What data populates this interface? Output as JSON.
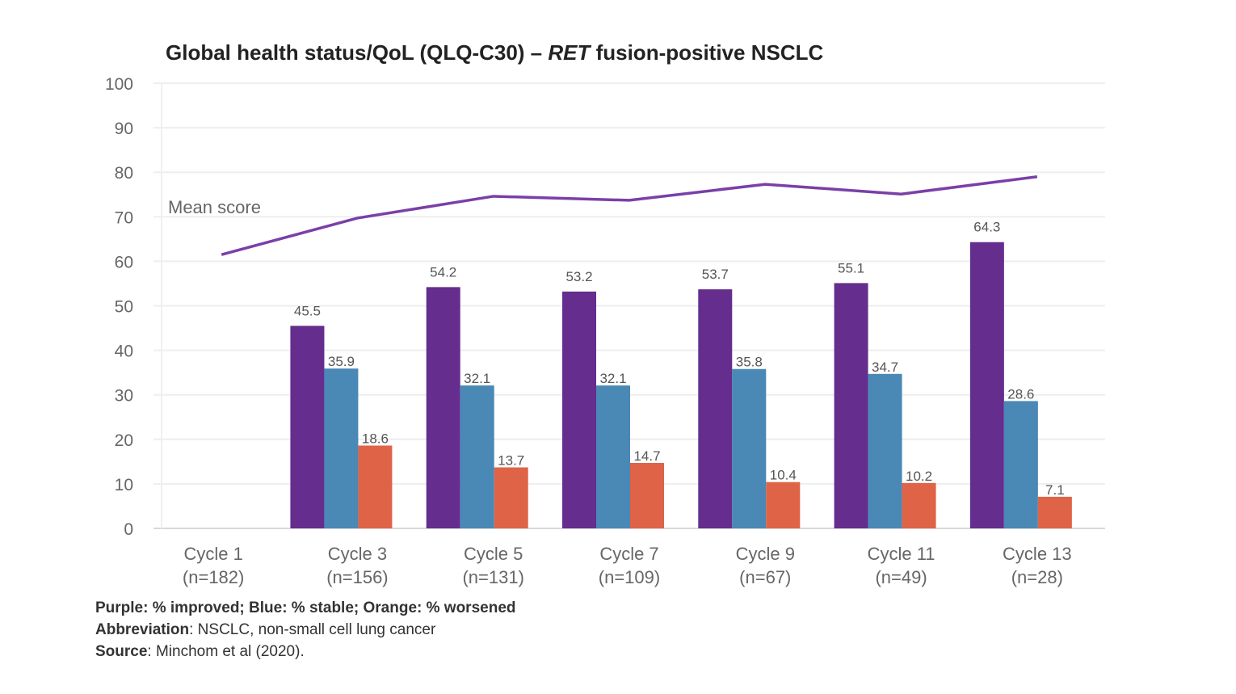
{
  "chart_data": {
    "type": "bar",
    "title": "Global health status/QoL (QLQ-C30) – ",
    "title_italic": "RET",
    "title_end": " fusion-positive NSCLC",
    "categories": [
      "Cycle 1",
      "Cycle 3",
      "Cycle 5",
      "Cycle 7",
      "Cycle 9",
      "Cycle 11",
      "Cycle 13"
    ],
    "category_n": [
      "(n=182)",
      "(n=156)",
      "(n=131)",
      "(n=109)",
      "(n=67)",
      "(n=49)",
      "(n=28)"
    ],
    "ylim": [
      0,
      100
    ],
    "yticks": [
      0,
      10,
      20,
      30,
      40,
      50,
      60,
      70,
      80,
      90,
      100
    ],
    "grid": true,
    "series": [
      {
        "color": "#652d8e",
        "values": [
          null,
          45.5,
          54.2,
          53.2,
          53.7,
          55.1,
          64.3
        ]
      },
      {
        "color": "#4a88b5",
        "values": [
          null,
          35.9,
          32.1,
          32.1,
          35.8,
          34.7,
          28.6
        ]
      },
      {
        "color": "#de6347",
        "values": [
          null,
          18.6,
          13.7,
          14.7,
          10.4,
          10.2,
          7.1
        ]
      }
    ],
    "line": {
      "name": "Mean score",
      "color": "#7b3fa8",
      "values": [
        61.5,
        69.7,
        74.6,
        73.7,
        77.3,
        75.1,
        79.0
      ]
    }
  },
  "footer": {
    "legend_note": "Purple: % improved; Blue: % stable; Orange: % worsened",
    "abbr_label": "Abbreviation",
    "abbr_text": ": NSCLC, non-small cell lung cancer",
    "source_label": "Source",
    "source_text": ": Minchom et al (2020)."
  }
}
